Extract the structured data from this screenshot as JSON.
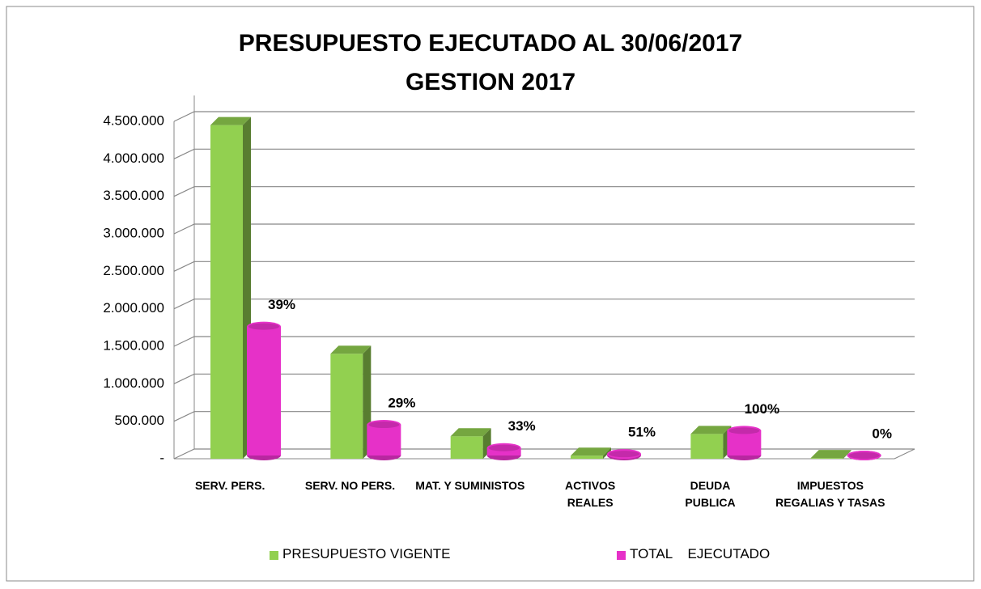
{
  "chart_data": {
    "type": "bar3d",
    "title": "PRESUPUESTO EJECUTADO AL 30/06/2017\nGESTION 2017",
    "categories": [
      "SERV. PERS.",
      "SERV. NO PERS.",
      "MAT. Y SUMINISTOS",
      "ACTIVOS\nREALES",
      "DEUDA\nPUBLICA",
      "IMPUESTOS\nREGALIAS Y TASAS"
    ],
    "series": [
      {
        "name": "PRESUPUESTO VIGENTE",
        "color": "#92d050",
        "values": [
          4450000,
          1400000,
          300000,
          40000,
          330000,
          10000
        ]
      },
      {
        "name": "TOTAL    EJECUTADO",
        "color": "#e631c8",
        "values": [
          1720000,
          410000,
          100000,
          20000,
          330000,
          0
        ]
      }
    ],
    "annotations": [
      "39%",
      "29%",
      "33%",
      "51%",
      "100%",
      "0%"
    ],
    "ylim": [
      0,
      4500000
    ],
    "yticks": [
      {
        "value": 0,
        "label": "-"
      },
      {
        "value": 500000,
        "label": "500.000"
      },
      {
        "value": 1000000,
        "label": "1.000.000"
      },
      {
        "value": 1500000,
        "label": "1.500.000"
      },
      {
        "value": 2000000,
        "label": "2.000.000"
      },
      {
        "value": 2500000,
        "label": "2.500.000"
      },
      {
        "value": 3000000,
        "label": "3.000.000"
      },
      {
        "value": 3500000,
        "label": "3.500.000"
      },
      {
        "value": 4000000,
        "label": "4.000.000"
      },
      {
        "value": 4500000,
        "label": "4.500.000"
      }
    ],
    "grid": true,
    "legend": "bottom"
  }
}
